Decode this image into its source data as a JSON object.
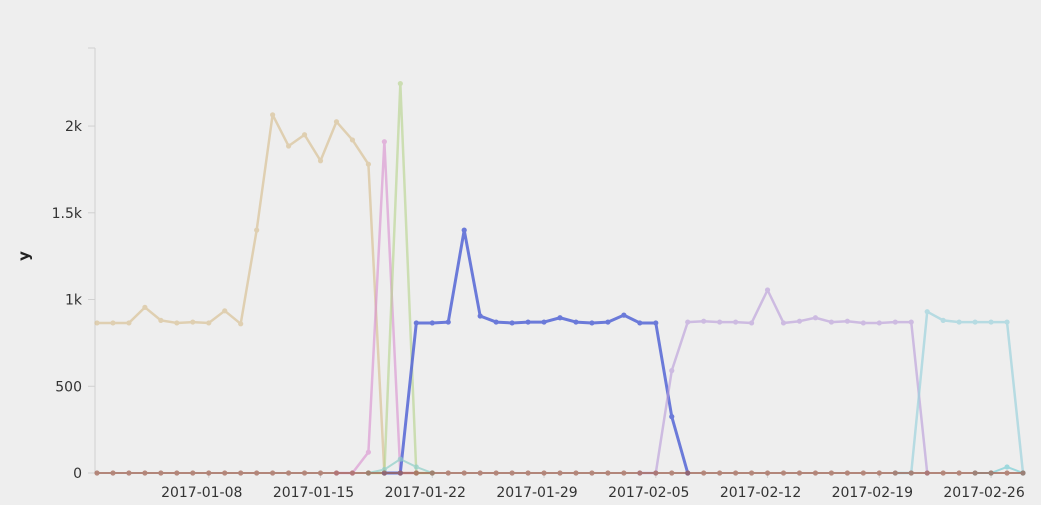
{
  "chart_data": {
    "type": "line",
    "ylabel": "y",
    "ylim": [
      0,
      2450
    ],
    "yticks": [
      0,
      500,
      1000,
      1500,
      2000
    ],
    "ytick_labels": [
      "0",
      "500",
      "1k",
      "1.5k",
      "2k"
    ],
    "x_start": "2017-01-01",
    "x_end": "2017-02-28",
    "xtick_labels": [
      "2017-01-08",
      "2017-01-15",
      "2017-01-22",
      "2017-01-29",
      "2017-02-05",
      "2017-02-12",
      "2017-02-19",
      "2017-02-26"
    ],
    "grid": false,
    "series": [
      {
        "color": "#d6bc8a",
        "opacity": 0.6,
        "width": 2.5,
        "x": [
          "2017-01-01",
          "2017-01-02",
          "2017-01-03",
          "2017-01-04",
          "2017-01-05",
          "2017-01-06",
          "2017-01-07",
          "2017-01-08",
          "2017-01-09",
          "2017-01-10",
          "2017-01-11",
          "2017-01-12",
          "2017-01-13",
          "2017-01-14",
          "2017-01-15",
          "2017-01-16",
          "2017-01-17",
          "2017-01-18",
          "2017-01-19",
          "2017-01-20",
          "2017-01-21"
        ],
        "y": [
          865,
          865,
          865,
          955,
          880,
          865,
          870,
          865,
          935,
          860,
          1400,
          2065,
          1885,
          1950,
          1800,
          2025,
          1920,
          1780,
          0,
          0,
          0
        ]
      },
      {
        "color": "#d98fd0",
        "opacity": 0.6,
        "width": 2.5,
        "x": [
          "2017-01-16",
          "2017-01-17",
          "2017-01-18",
          "2017-01-19",
          "2017-01-20",
          "2017-01-21"
        ],
        "y": [
          0,
          0,
          120,
          1910,
          0,
          0
        ]
      },
      {
        "color": "#b5d38a",
        "opacity": 0.6,
        "width": 2.5,
        "x": [
          "2017-01-18",
          "2017-01-19",
          "2017-01-20",
          "2017-01-21",
          "2017-01-22"
        ],
        "y": [
          0,
          0,
          2245,
          0,
          0
        ]
      },
      {
        "color": "#5566d6",
        "opacity": 0.85,
        "width": 3,
        "x": [
          "2017-01-19",
          "2017-01-20",
          "2017-01-21",
          "2017-01-22",
          "2017-01-23",
          "2017-01-24",
          "2017-01-25",
          "2017-01-26",
          "2017-01-27",
          "2017-01-28",
          "2017-01-29",
          "2017-01-30",
          "2017-01-31",
          "2017-02-01",
          "2017-02-02",
          "2017-02-03",
          "2017-02-04",
          "2017-02-05",
          "2017-02-06",
          "2017-02-07"
        ],
        "y": [
          0,
          0,
          865,
          865,
          870,
          1400,
          905,
          870,
          865,
          870,
          870,
          895,
          870,
          865,
          870,
          910,
          865,
          865,
          325,
          0
        ]
      },
      {
        "color": "#b89ad9",
        "opacity": 0.6,
        "width": 2.5,
        "x": [
          "2017-02-04",
          "2017-02-05",
          "2017-02-06",
          "2017-02-07",
          "2017-02-08",
          "2017-02-09",
          "2017-02-10",
          "2017-02-11",
          "2017-02-12",
          "2017-02-13",
          "2017-02-14",
          "2017-02-15",
          "2017-02-16",
          "2017-02-17",
          "2017-02-18",
          "2017-02-19",
          "2017-02-20",
          "2017-02-21",
          "2017-02-22"
        ],
        "y": [
          0,
          0,
          590,
          870,
          875,
          870,
          870,
          865,
          1055,
          865,
          875,
          895,
          870,
          875,
          865,
          865,
          870,
          870,
          0
        ]
      },
      {
        "color": "#9fd3dd",
        "opacity": 0.7,
        "width": 2.5,
        "x": [
          "2017-02-20",
          "2017-02-21",
          "2017-02-22",
          "2017-02-23",
          "2017-02-24",
          "2017-02-25",
          "2017-02-26",
          "2017-02-27",
          "2017-02-28"
        ],
        "y": [
          0,
          0,
          930,
          880,
          870,
          870,
          870,
          870,
          0
        ]
      },
      {
        "color": "#8fcfc9",
        "opacity": 0.7,
        "width": 2,
        "x": [
          "2017-01-18",
          "2017-01-19",
          "2017-01-20",
          "2017-01-21",
          "2017-01-22"
        ],
        "y": [
          0,
          20,
          80,
          35,
          0
        ]
      },
      {
        "color": "#7ccfd6",
        "opacity": 0.7,
        "width": 2,
        "x": [
          "2017-02-25",
          "2017-02-26",
          "2017-02-27",
          "2017-02-28"
        ],
        "y": [
          0,
          0,
          35,
          0
        ]
      },
      {
        "color": "#a0604f",
        "opacity": 0.7,
        "width": 2,
        "x": [
          "2017-01-01",
          "2017-01-02",
          "2017-01-03",
          "2017-01-04",
          "2017-01-05",
          "2017-01-06",
          "2017-01-07",
          "2017-01-08",
          "2017-01-09",
          "2017-01-10",
          "2017-01-11",
          "2017-01-12",
          "2017-01-13",
          "2017-01-14",
          "2017-01-15",
          "2017-01-16",
          "2017-01-17",
          "2017-01-18",
          "2017-01-19",
          "2017-01-20",
          "2017-01-21",
          "2017-01-22",
          "2017-01-23",
          "2017-01-24",
          "2017-01-25",
          "2017-01-26",
          "2017-01-27",
          "2017-01-28",
          "2017-01-29",
          "2017-01-30",
          "2017-01-31",
          "2017-02-01",
          "2017-02-02",
          "2017-02-03",
          "2017-02-04",
          "2017-02-05",
          "2017-02-06",
          "2017-02-07",
          "2017-02-08",
          "2017-02-09",
          "2017-02-10",
          "2017-02-11",
          "2017-02-12",
          "2017-02-13",
          "2017-02-14",
          "2017-02-15",
          "2017-02-16",
          "2017-02-17",
          "2017-02-18",
          "2017-02-19",
          "2017-02-20",
          "2017-02-21",
          "2017-02-22",
          "2017-02-23",
          "2017-02-24",
          "2017-02-25",
          "2017-02-26",
          "2017-02-27",
          "2017-02-28"
        ],
        "y": [
          0,
          0,
          0,
          0,
          0,
          0,
          0,
          0,
          0,
          0,
          0,
          0,
          0,
          0,
          0,
          0,
          0,
          0,
          0,
          0,
          0,
          0,
          0,
          0,
          0,
          0,
          0,
          0,
          0,
          0,
          0,
          0,
          0,
          0,
          0,
          0,
          0,
          0,
          0,
          0,
          0,
          0,
          0,
          0,
          0,
          0,
          0,
          0,
          0,
          0,
          0,
          0,
          0,
          0,
          0,
          0,
          0,
          0,
          0
        ]
      }
    ]
  }
}
